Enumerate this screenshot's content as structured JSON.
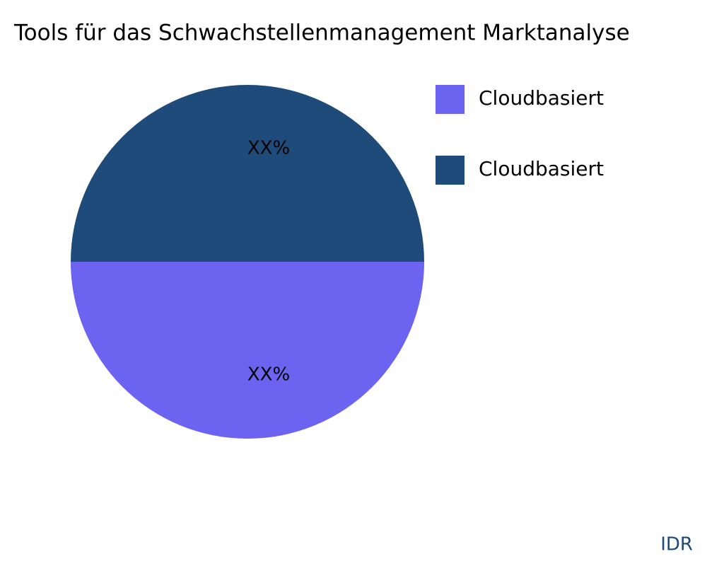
{
  "chart_data": {
    "type": "pie",
    "title": "Tools für das Schwachstellenmanagement Marktanalyse",
    "categories": [
      "Cloudbasiert",
      "Cloudbasiert"
    ],
    "values": [
      50,
      50
    ],
    "value_labels": [
      "XX%",
      "XX%"
    ],
    "colors": [
      "#6c63f0",
      "#1f4b7a"
    ],
    "legend": "right",
    "watermark": "IDR"
  }
}
